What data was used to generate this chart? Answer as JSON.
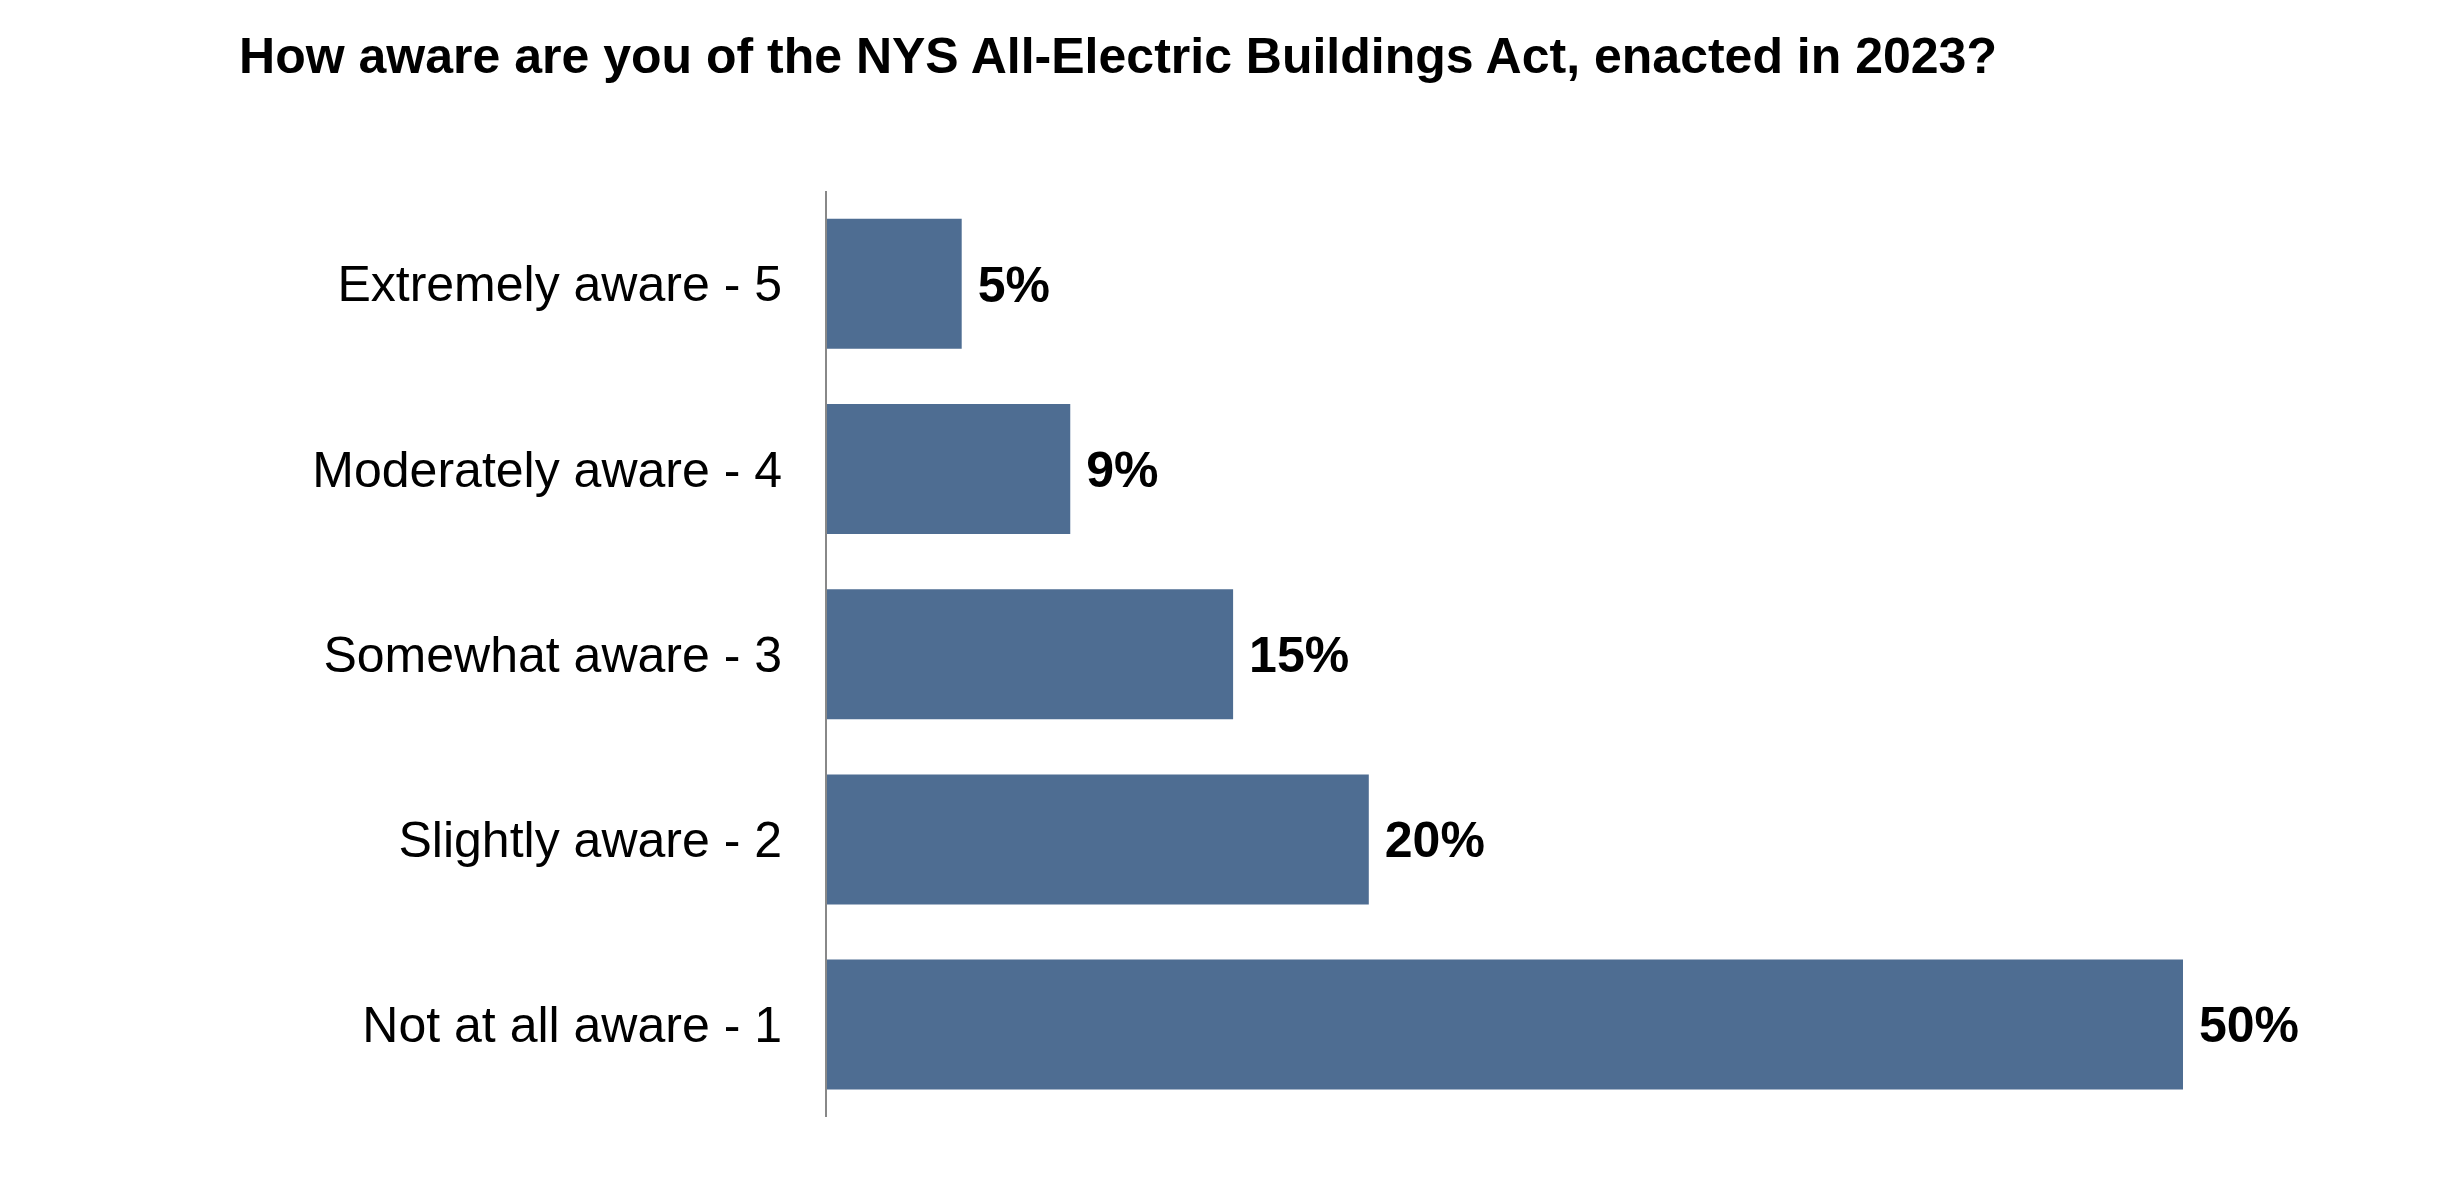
{
  "chart_data": {
    "type": "bar",
    "orientation": "horizontal",
    "title": "How aware are you of the NYS All-Electric Buildings Act, enacted in 2023?",
    "categories": [
      "Extremely aware - 5",
      "Moderately aware - 4",
      "Somewhat aware - 3",
      "Slightly aware - 2",
      "Not at all aware - 1"
    ],
    "values": [
      5,
      9,
      15,
      20,
      50
    ],
    "color": "#4e6d92",
    "value_labels": [
      "5%",
      "9%",
      "15%",
      "20%",
      "50%"
    ]
  }
}
